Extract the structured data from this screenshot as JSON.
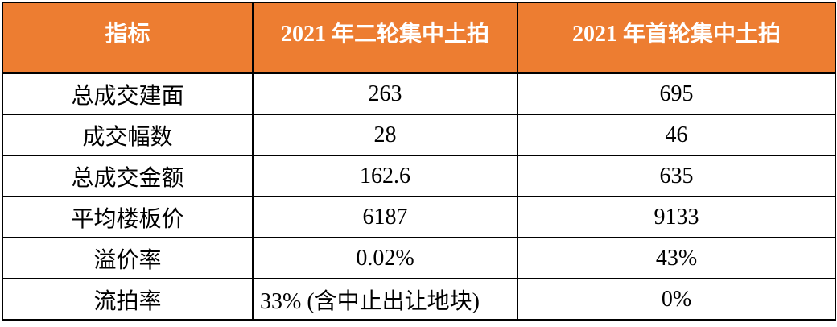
{
  "chart_data": {
    "type": "table",
    "columns": [
      "指标",
      "2021 年二轮集中土拍",
      "2021 年首轮集中土拍"
    ],
    "rows": [
      [
        "总成交建面",
        "263",
        "695"
      ],
      [
        "成交幅数",
        "28",
        "46"
      ],
      [
        "总成交金额",
        "162.6",
        "635"
      ],
      [
        "平均楼板价",
        "6187",
        "9133"
      ],
      [
        "溢价率",
        "0.02%",
        "43%"
      ],
      [
        "流拍率",
        "33% (含中止出让地块)",
        "0%"
      ]
    ],
    "layout": {
      "header_bg": "#ED7D31",
      "header_text_color": "#FFFFFF",
      "body_text_color": "#000000",
      "border_color": "#000000",
      "grid": "on"
    }
  }
}
